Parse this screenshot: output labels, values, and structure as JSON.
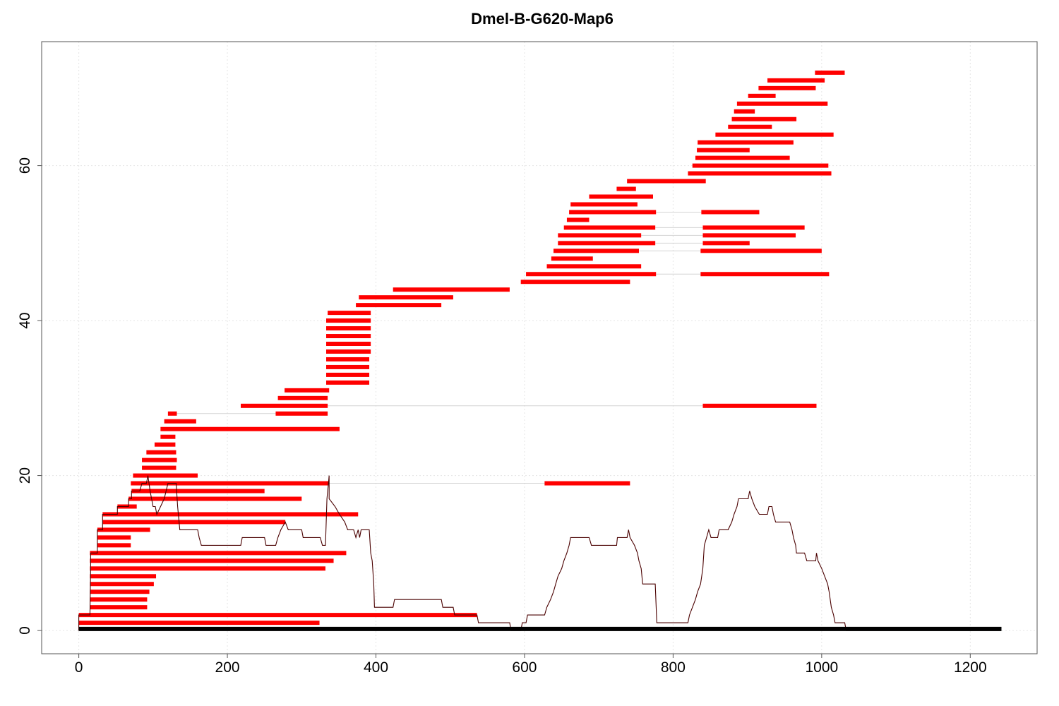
{
  "chart_data": {
    "type": "line",
    "title": "Dmel-B-G620-Map6",
    "xlabel": "",
    "ylabel": "",
    "xlim": [
      -50,
      1290
    ],
    "ylim": [
      -3,
      76
    ],
    "x_ticks": [
      0,
      200,
      400,
      600,
      800,
      1000,
      1200
    ],
    "y_ticks": [
      0,
      20,
      40,
      60
    ],
    "x_tick_labels": [
      "0",
      "200",
      "400",
      "600",
      "800",
      "1000",
      "1200"
    ],
    "y_tick_labels": [
      "0",
      "20",
      "40",
      "60"
    ],
    "grid": true,
    "colors": {
      "segment": "#ff0000",
      "coverage": "#000000",
      "reference": "#000000",
      "connector": "#d3d3d3",
      "grid": "#e5e5e5"
    },
    "reference_bar": {
      "x": [
        0,
        1242
      ],
      "y": 0.2
    },
    "segments": [
      {
        "y": 1,
        "x": [
          0,
          324
        ]
      },
      {
        "y": 2,
        "x": [
          0,
          536
        ]
      },
      {
        "y": 3,
        "x": [
          15,
          92
        ]
      },
      {
        "y": 4,
        "x": [
          15,
          92
        ]
      },
      {
        "y": 5,
        "x": [
          15,
          95
        ]
      },
      {
        "y": 6,
        "x": [
          15,
          101
        ]
      },
      {
        "y": 7,
        "x": [
          15,
          104
        ]
      },
      {
        "y": 8,
        "x": [
          15,
          332
        ]
      },
      {
        "y": 9,
        "x": [
          15,
          343
        ]
      },
      {
        "y": 10,
        "x": [
          15,
          360
        ]
      },
      {
        "y": 11,
        "x": [
          25,
          70
        ]
      },
      {
        "y": 12,
        "x": [
          25,
          70
        ]
      },
      {
        "y": 13,
        "x": [
          25,
          96
        ]
      },
      {
        "y": 14,
        "x": [
          32,
          278
        ]
      },
      {
        "y": 15,
        "x": [
          32,
          376
        ]
      },
      {
        "y": 16,
        "x": [
          52,
          78
        ]
      },
      {
        "y": 17,
        "x": [
          67,
          300
        ]
      },
      {
        "y": 18,
        "x": [
          71,
          250
        ]
      },
      {
        "y": 19,
        "x": [
          70,
          336
        ],
        "x2": [
          627,
          742
        ]
      },
      {
        "y": 20,
        "x": [
          73,
          160
        ]
      },
      {
        "y": 21,
        "x": [
          85,
          131
        ]
      },
      {
        "y": 22,
        "x": [
          85,
          132
        ]
      },
      {
        "y": 23,
        "x": [
          91,
          131
        ]
      },
      {
        "y": 24,
        "x": [
          102,
          130
        ]
      },
      {
        "y": 25,
        "x": [
          110,
          130
        ]
      },
      {
        "y": 26,
        "x": [
          110,
          351
        ]
      },
      {
        "y": 27,
        "x": [
          115,
          158
        ]
      },
      {
        "y": 28,
        "x": [
          120,
          132
        ],
        "x2": [
          265,
          335
        ]
      },
      {
        "y": 29,
        "x": [
          218,
          335
        ],
        "x2": [
          840,
          993
        ]
      },
      {
        "y": 30,
        "x": [
          268,
          335
        ]
      },
      {
        "y": 31,
        "x": [
          277,
          337
        ]
      },
      {
        "y": 32,
        "x": [
          333,
          391
        ]
      },
      {
        "y": 33,
        "x": [
          333,
          391
        ]
      },
      {
        "y": 34,
        "x": [
          333,
          391
        ]
      },
      {
        "y": 35,
        "x": [
          333,
          391
        ]
      },
      {
        "y": 36,
        "x": [
          333,
          393
        ]
      },
      {
        "y": 37,
        "x": [
          333,
          393
        ]
      },
      {
        "y": 38,
        "x": [
          333,
          393
        ]
      },
      {
        "y": 39,
        "x": [
          333,
          393
        ]
      },
      {
        "y": 40,
        "x": [
          333,
          393
        ]
      },
      {
        "y": 41,
        "x": [
          335,
          393
        ]
      },
      {
        "y": 42,
        "x": [
          373,
          488
        ]
      },
      {
        "y": 43,
        "x": [
          377,
          504
        ]
      },
      {
        "y": 44,
        "x": [
          423,
          580
        ]
      },
      {
        "y": 45,
        "x": [
          595,
          742
        ]
      },
      {
        "y": 46,
        "x": [
          602,
          777
        ],
        "x2": [
          837,
          1010
        ]
      },
      {
        "y": 47,
        "x": [
          630,
          757
        ]
      },
      {
        "y": 48,
        "x": [
          636,
          692
        ]
      },
      {
        "y": 49,
        "x": [
          639,
          754
        ],
        "x2": [
          837,
          1000
        ]
      },
      {
        "y": 50,
        "x": [
          645,
          776
        ],
        "x2": [
          840,
          903
        ]
      },
      {
        "y": 51,
        "x": [
          645,
          757
        ],
        "x2": [
          840,
          965
        ]
      },
      {
        "y": 52,
        "x": [
          653,
          776
        ],
        "x2": [
          840,
          977
        ]
      },
      {
        "y": 53,
        "x": [
          657,
          687
        ]
      },
      {
        "y": 54,
        "x": [
          660,
          777
        ],
        "x2": [
          838,
          916
        ]
      },
      {
        "y": 55,
        "x": [
          662,
          752
        ]
      },
      {
        "y": 56,
        "x": [
          687,
          773
        ]
      },
      {
        "y": 57,
        "x": [
          724,
          750
        ]
      },
      {
        "y": 58,
        "x": [
          738,
          844
        ]
      },
      {
        "y": 59,
        "x": [
          820,
          1013
        ]
      },
      {
        "y": 60,
        "x": [
          826,
          1009
        ]
      },
      {
        "y": 61,
        "x": [
          830,
          957
        ]
      },
      {
        "y": 62,
        "x": [
          832,
          903
        ]
      },
      {
        "y": 63,
        "x": [
          833,
          962
        ]
      },
      {
        "y": 64,
        "x": [
          857,
          1016
        ]
      },
      {
        "y": 65,
        "x": [
          874,
          933
        ]
      },
      {
        "y": 66,
        "x": [
          879,
          966
        ]
      },
      {
        "y": 67,
        "x": [
          882,
          910
        ]
      },
      {
        "y": 68,
        "x": [
          886,
          1008
        ]
      },
      {
        "y": 69,
        "x": [
          901,
          938
        ]
      },
      {
        "y": 70,
        "x": [
          915,
          992
        ]
      },
      {
        "y": 71,
        "x": [
          927,
          1004
        ]
      },
      {
        "y": 72,
        "x": [
          991,
          1031
        ]
      }
    ],
    "coverage_profile": [
      [
        0,
        0
      ],
      [
        0,
        2
      ],
      [
        15,
        2
      ],
      [
        16,
        8
      ],
      [
        16,
        10
      ],
      [
        25,
        10
      ],
      [
        25,
        13
      ],
      [
        32,
        13
      ],
      [
        32,
        15
      ],
      [
        52,
        15
      ],
      [
        52,
        16
      ],
      [
        67,
        16
      ],
      [
        67,
        17
      ],
      [
        71,
        17
      ],
      [
        71,
        18
      ],
      [
        82,
        18
      ],
      [
        85,
        19
      ],
      [
        91,
        19
      ],
      [
        93,
        20
      ],
      [
        96,
        18
      ],
      [
        100,
        16
      ],
      [
        103,
        16
      ],
      [
        105,
        15
      ],
      [
        110,
        16
      ],
      [
        115,
        17
      ],
      [
        120,
        19
      ],
      [
        131,
        19
      ],
      [
        133,
        16
      ],
      [
        136,
        13
      ],
      [
        160,
        13
      ],
      [
        162,
        12
      ],
      [
        165,
        11
      ],
      [
        218,
        11
      ],
      [
        220,
        12
      ],
      [
        250,
        12
      ],
      [
        252,
        11
      ],
      [
        265,
        11
      ],
      [
        268,
        12
      ],
      [
        272,
        13
      ],
      [
        278,
        14
      ],
      [
        282,
        13
      ],
      [
        300,
        13
      ],
      [
        302,
        12
      ],
      [
        325,
        12
      ],
      [
        328,
        11
      ],
      [
        332,
        11
      ],
      [
        334,
        17
      ],
      [
        335,
        18
      ],
      [
        336,
        19
      ],
      [
        337,
        20
      ],
      [
        337,
        17
      ],
      [
        345,
        16
      ],
      [
        351,
        15
      ],
      [
        358,
        14
      ],
      [
        362,
        13
      ],
      [
        370,
        13
      ],
      [
        373,
        12
      ],
      [
        376,
        13
      ],
      [
        378,
        12
      ],
      [
        380,
        13
      ],
      [
        391,
        13
      ],
      [
        393,
        10
      ],
      [
        395,
        9
      ],
      [
        397,
        6
      ],
      [
        398,
        3
      ],
      [
        423,
        3
      ],
      [
        425,
        4
      ],
      [
        488,
        4
      ],
      [
        490,
        3
      ],
      [
        504,
        3
      ],
      [
        506,
        2
      ],
      [
        536,
        2
      ],
      [
        538,
        1
      ],
      [
        580,
        1
      ],
      [
        582,
        0
      ],
      [
        595,
        0
      ],
      [
        597,
        1
      ],
      [
        602,
        1
      ],
      [
        604,
        2
      ],
      [
        627,
        2
      ],
      [
        630,
        3
      ],
      [
        635,
        4
      ],
      [
        639,
        5
      ],
      [
        642,
        6
      ],
      [
        645,
        7
      ],
      [
        650,
        8
      ],
      [
        653,
        9
      ],
      [
        657,
        10
      ],
      [
        660,
        11
      ],
      [
        662,
        12
      ],
      [
        687,
        12
      ],
      [
        690,
        11
      ],
      [
        724,
        11
      ],
      [
        725,
        12
      ],
      [
        738,
        12
      ],
      [
        740,
        13
      ],
      [
        742,
        12
      ],
      [
        748,
        11
      ],
      [
        752,
        10
      ],
      [
        754,
        9
      ],
      [
        757,
        8
      ],
      [
        759,
        6
      ],
      [
        776,
        6
      ],
      [
        778,
        1
      ],
      [
        820,
        1
      ],
      [
        822,
        2
      ],
      [
        826,
        3
      ],
      [
        830,
        4
      ],
      [
        833,
        5
      ],
      [
        837,
        6
      ],
      [
        840,
        8
      ],
      [
        842,
        11
      ],
      [
        845,
        12
      ],
      [
        848,
        13
      ],
      [
        851,
        12
      ],
      [
        860,
        12
      ],
      [
        862,
        13
      ],
      [
        874,
        13
      ],
      [
        879,
        14
      ],
      [
        882,
        15
      ],
      [
        886,
        16
      ],
      [
        888,
        17
      ],
      [
        901,
        17
      ],
      [
        903,
        18
      ],
      [
        906,
        17
      ],
      [
        910,
        16
      ],
      [
        916,
        15
      ],
      [
        927,
        15
      ],
      [
        929,
        16
      ],
      [
        933,
        16
      ],
      [
        935,
        15
      ],
      [
        938,
        14
      ],
      [
        957,
        14
      ],
      [
        960,
        13
      ],
      [
        962,
        12
      ],
      [
        965,
        11
      ],
      [
        966,
        10
      ],
      [
        977,
        10
      ],
      [
        980,
        9
      ],
      [
        992,
        9
      ],
      [
        993,
        10
      ],
      [
        995,
        9
      ],
      [
        1000,
        8
      ],
      [
        1004,
        7
      ],
      [
        1008,
        6
      ],
      [
        1010,
        5
      ],
      [
        1013,
        3
      ],
      [
        1016,
        2
      ],
      [
        1018,
        1
      ],
      [
        1031,
        1
      ],
      [
        1033,
        0
      ],
      [
        1242,
        0
      ]
    ]
  }
}
